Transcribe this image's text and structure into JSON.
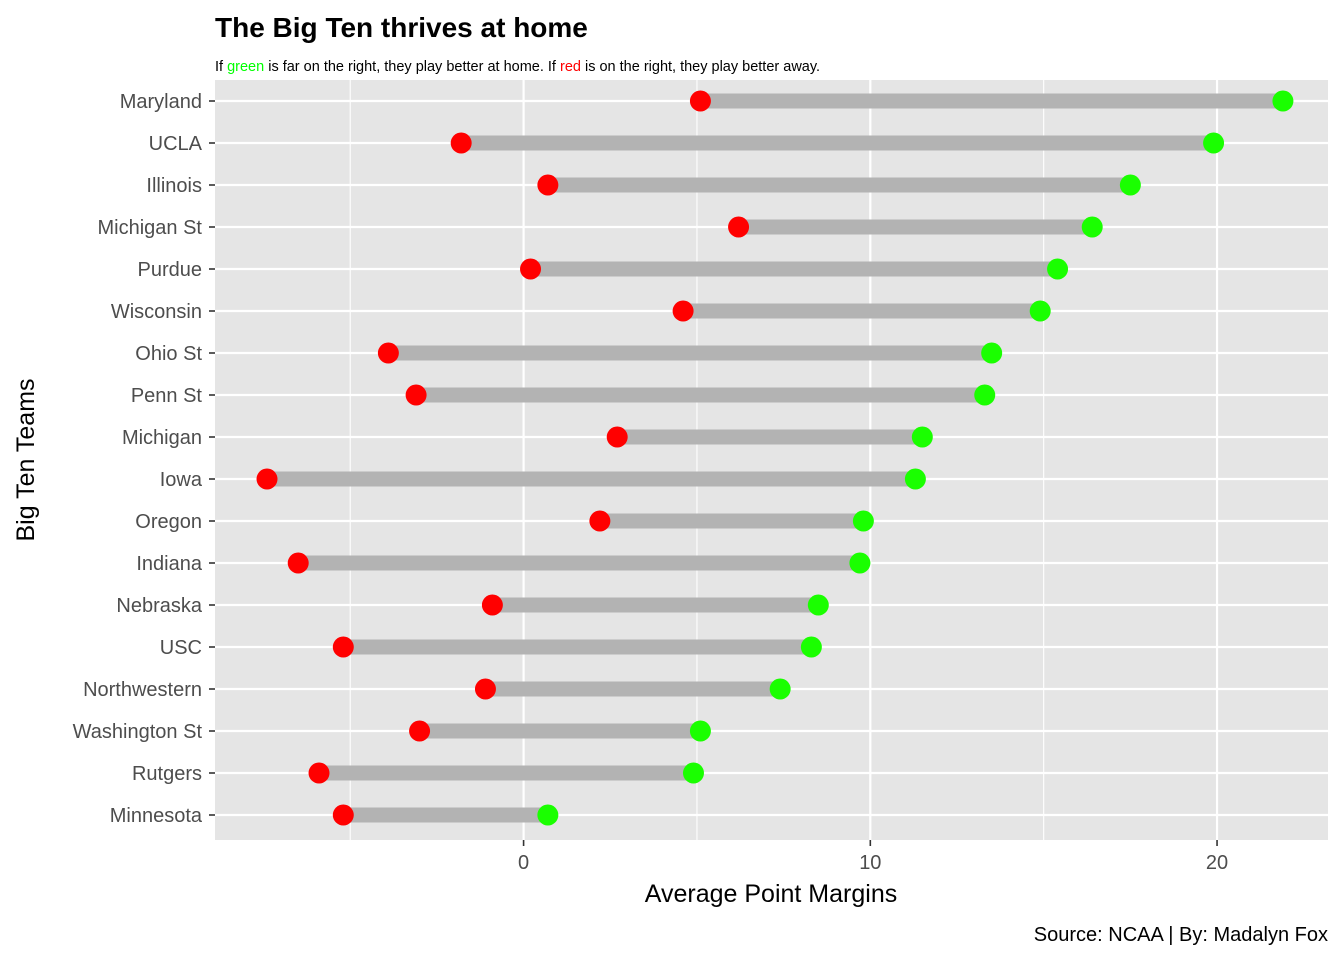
{
  "chart_data": {
    "type": "dumbbell",
    "title": "The Big Ten thrives at home",
    "subtitle": {
      "parts": [
        {
          "text": "If ",
          "color": "#000000"
        },
        {
          "text": "green",
          "color": "#00ff00"
        },
        {
          "text": " is far on the right, they play better at home. If ",
          "color": "#000000"
        },
        {
          "text": "red",
          "color": "#ff0000"
        },
        {
          "text": " is on the right, they play better away.",
          "color": "#000000"
        }
      ]
    },
    "xlabel": "Average Point Margins",
    "ylabel": "Big Ten Teams",
    "caption": "Source: NCAA | By: Madalyn Fox",
    "xlim": [
      -8.9,
      23.2
    ],
    "xticks": [
      0,
      10,
      20
    ],
    "xtick_labels": [
      "0",
      "10",
      "20"
    ],
    "grid": true,
    "colors": {
      "panel": "#e5e5e5",
      "gridline": "#ffffff",
      "segment": "#b3b3b3",
      "home": "#1aff00",
      "away": "#ff0000"
    },
    "series": [
      {
        "name": "away",
        "color": "#ff0000"
      },
      {
        "name": "home",
        "color": "#1aff00"
      }
    ],
    "teams": [
      {
        "team": "Maryland",
        "away": 5.1,
        "home": 21.9
      },
      {
        "team": "UCLA",
        "away": -1.8,
        "home": 19.9
      },
      {
        "team": "Illinois",
        "away": 0.7,
        "home": 17.5
      },
      {
        "team": "Michigan St",
        "away": 6.2,
        "home": 16.4
      },
      {
        "team": "Purdue",
        "away": 0.2,
        "home": 15.4
      },
      {
        "team": "Wisconsin",
        "away": 4.6,
        "home": 14.9
      },
      {
        "team": "Ohio St",
        "away": -3.9,
        "home": 13.5
      },
      {
        "team": "Penn St",
        "away": -3.1,
        "home": 13.3
      },
      {
        "team": "Michigan",
        "away": 2.7,
        "home": 11.5
      },
      {
        "team": "Iowa",
        "away": -7.4,
        "home": 11.3
      },
      {
        "team": "Oregon",
        "away": 2.2,
        "home": 9.8
      },
      {
        "team": "Indiana",
        "away": -6.5,
        "home": 9.7
      },
      {
        "team": "Nebraska",
        "away": -0.9,
        "home": 8.5
      },
      {
        "team": "USC",
        "away": -5.2,
        "home": 8.3
      },
      {
        "team": "Northwestern",
        "away": -1.1,
        "home": 7.4
      },
      {
        "team": "Washington St",
        "away": -3.0,
        "home": 5.1
      },
      {
        "team": "Rutgers",
        "away": -5.9,
        "home": 4.9
      },
      {
        "team": "Minnesota",
        "away": -5.2,
        "home": 0.7
      }
    ]
  }
}
